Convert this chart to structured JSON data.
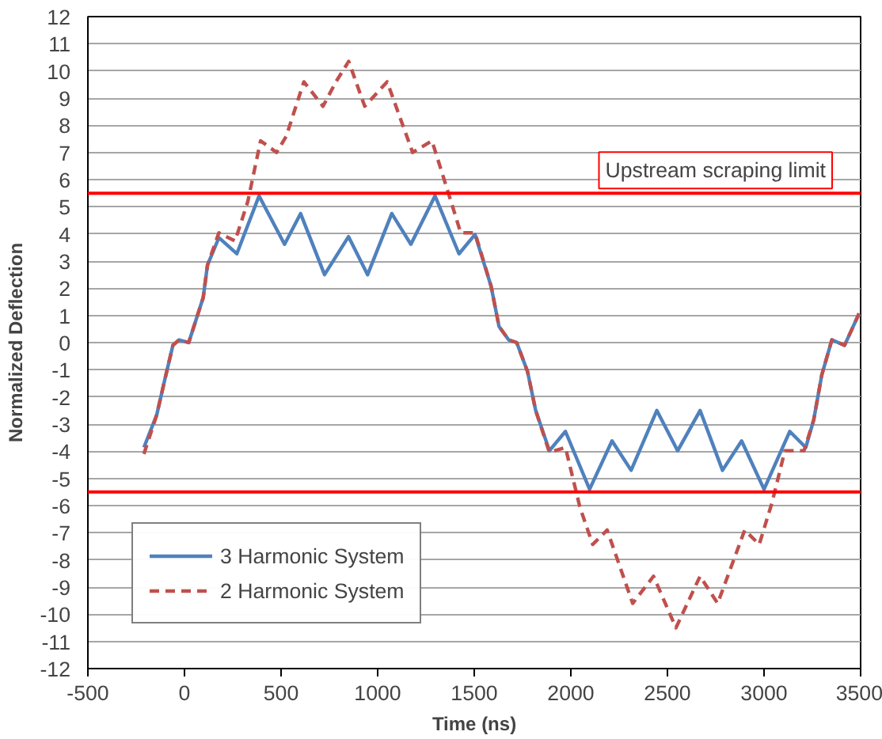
{
  "chart_data": {
    "type": "line",
    "xlabel": "Time (ns)",
    "ylabel": "Normalized Deflection",
    "xlim": [
      -500,
      3500
    ],
    "xticks": [
      -500,
      0,
      500,
      1000,
      1500,
      2000,
      2500,
      3000,
      3500
    ],
    "ylim": [
      -12,
      12
    ],
    "yticks": [
      -12,
      -11,
      -10,
      -9,
      -8,
      -7,
      -6,
      -5,
      -4,
      -3,
      -2,
      -1,
      0,
      1,
      2,
      3,
      4,
      5,
      6,
      7,
      8,
      9,
      10,
      11,
      12
    ],
    "grid": "y",
    "legend": "bottom left",
    "marker": "none",
    "ref_lines": [
      {
        "axis": "y",
        "value": 5.5,
        "label": "Upstream scraping limit",
        "color": "#ff0000"
      },
      {
        "axis": "y",
        "value": -5.5,
        "color": "#ff0000"
      }
    ],
    "series": [
      {
        "name": "3 Harmonic System",
        "color": "#4f81bd",
        "line_style": "solid",
        "x": [
          -210,
          -144,
          -102,
          -60,
          -28,
          22,
          97,
          119,
          178,
          271,
          386,
          518,
          601,
          725,
          849,
          948,
          1073,
          1172,
          1297,
          1421,
          1504,
          1587,
          1628,
          1678,
          1720,
          1776,
          1818,
          1889,
          1972,
          2097,
          2213,
          2312,
          2445,
          2553,
          2669,
          2785,
          2884,
          3000,
          3133,
          3216,
          3257,
          3299,
          3351,
          3417,
          3492
        ],
        "values": [
          -3.86,
          -2.67,
          -1.37,
          -0.1,
          0.1,
          0,
          1.66,
          2.85,
          3.86,
          3.27,
          5.4,
          3.62,
          4.75,
          2.5,
          3.9,
          2.5,
          4.75,
          3.62,
          5.4,
          3.27,
          3.98,
          2.08,
          0.6,
          0.1,
          0,
          -1.07,
          -2.5,
          -3.98,
          -3.27,
          -5.4,
          -3.62,
          -4.7,
          -2.5,
          -3.98,
          -2.5,
          -4.7,
          -3.62,
          -5.4,
          -3.27,
          -3.86,
          -2.85,
          -1.19,
          0.1,
          -0.1,
          1.07
        ]
      },
      {
        "name": "2 Harmonic System",
        "color": "#c0504d",
        "line_style": "dashed",
        "x": [
          -210,
          -144,
          -102,
          -60,
          -28,
          22,
          97,
          119,
          178,
          262,
          328,
          394,
          477,
          527,
          618,
          717,
          784,
          850,
          933,
          1049,
          1181,
          1281,
          1347,
          1430,
          1504,
          1587,
          1628,
          1678,
          1720,
          1776,
          1818,
          1889,
          1972,
          2047,
          2113,
          2188,
          2320,
          2428,
          2544,
          2669,
          2760,
          2900,
          2975,
          3041,
          3108,
          3207,
          3257,
          3299,
          3351,
          3417,
          3492
        ],
        "values": [
          -4.1,
          -2.67,
          -1.37,
          -0.1,
          0.1,
          0,
          1.66,
          2.85,
          4.04,
          3.74,
          5.2,
          7.43,
          7.0,
          7.6,
          9.6,
          8.7,
          9.6,
          10.35,
          8.7,
          9.6,
          7.0,
          7.43,
          5.94,
          4.04,
          4.04,
          2.08,
          0.6,
          0.1,
          0,
          -1.07,
          -2.5,
          -4.04,
          -3.86,
          -6.06,
          -7.43,
          -6.9,
          -9.6,
          -8.6,
          -10.5,
          -8.6,
          -9.6,
          -6.9,
          -7.43,
          -5.9,
          -3.98,
          -3.98,
          -2.85,
          -1.19,
          0.1,
          -0.1,
          1.07
        ]
      }
    ]
  }
}
